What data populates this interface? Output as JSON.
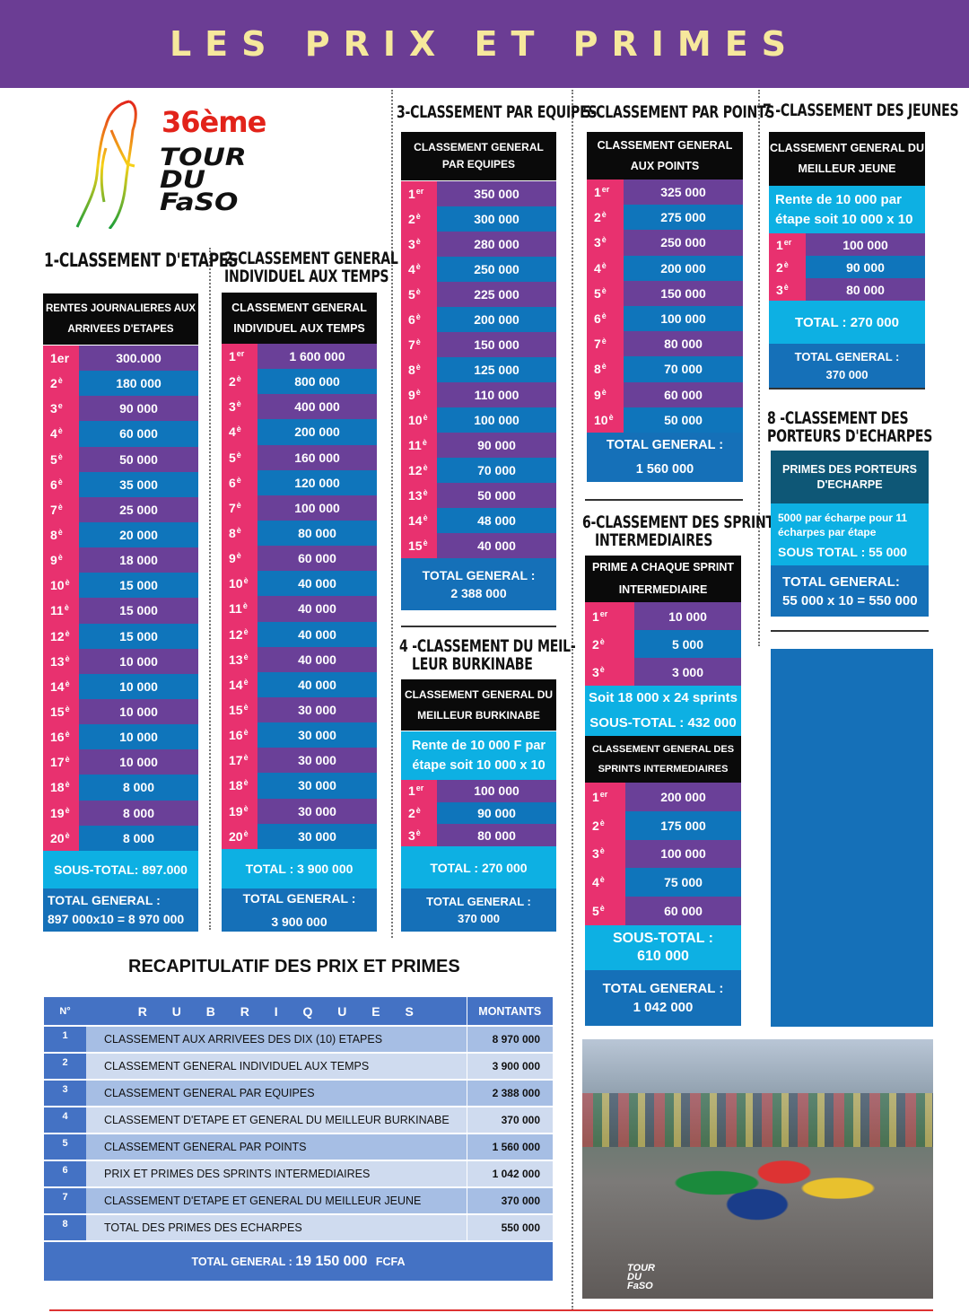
{
  "banner": {
    "title": "LES PRIX ET PRIMES"
  },
  "logo": {
    "edition": "36ème",
    "name": "TOUR\nDU\nFaSO"
  },
  "colors": {
    "banner": "#6b3d94",
    "title": "#f6e89c",
    "rank": "#e8316f",
    "purple": "#6a4098",
    "blue": "#0f75bb",
    "cyan": "#0db0e3",
    "recap": "#4472c4"
  },
  "s1": {
    "title": "1-CLASSEMENT D'ETAPES",
    "header": "RENTES JOURNALIERES AUX\nARRIVEES D'ETAPES",
    "rows": [
      {
        "n": "1er",
        "sup": "",
        "v": "300.000"
      },
      {
        "n": "2",
        "sup": "è",
        "v": "180 000"
      },
      {
        "n": "3",
        "sup": "e",
        "v": "90 000"
      },
      {
        "n": "4",
        "sup": "è",
        "v": "60 000"
      },
      {
        "n": "5",
        "sup": "è",
        "v": "50 000"
      },
      {
        "n": "6",
        "sup": "è",
        "v": "35 000"
      },
      {
        "n": "7",
        "sup": "è",
        "v": "25 000"
      },
      {
        "n": "8",
        "sup": "è",
        "v": "20 000"
      },
      {
        "n": "9",
        "sup": "è",
        "v": "18 000"
      },
      {
        "n": "10",
        "sup": "è",
        "v": "15 000"
      },
      {
        "n": "11",
        "sup": "è",
        "v": "15 000"
      },
      {
        "n": "12",
        "sup": "è",
        "v": "15 000"
      },
      {
        "n": "13",
        "sup": "è",
        "v": "10 000"
      },
      {
        "n": "14",
        "sup": "è",
        "v": "10 000"
      },
      {
        "n": "15",
        "sup": "è",
        "v": "10 000"
      },
      {
        "n": "16",
        "sup": "è",
        "v": "10 000"
      },
      {
        "n": "17",
        "sup": "è",
        "v": "10 000"
      },
      {
        "n": "18",
        "sup": "è",
        "v": "8 000"
      },
      {
        "n": "19",
        "sup": "è",
        "v": "8 000"
      },
      {
        "n": "20",
        "sup": "è",
        "v": "8 000"
      }
    ],
    "subtotal": "SOUS-TOTAL: 897.000",
    "total": "TOTAL GENERAL :\n897 000x10 = 8 970 000"
  },
  "s2": {
    "title": "2-CLASSEMENT GENERAL\nINDIVIDUEL AUX TEMPS",
    "header": "CLASSEMENT GENERAL\nINDIVIDUEL AUX TEMPS",
    "rows": [
      {
        "n": "1",
        "sup": "er",
        "v": "1 600 000"
      },
      {
        "n": "2",
        "sup": "è",
        "v": "800 000"
      },
      {
        "n": "3",
        "sup": "è",
        "v": "400 000"
      },
      {
        "n": "4",
        "sup": "è",
        "v": "200 000"
      },
      {
        "n": "5",
        "sup": "è",
        "v": "160 000"
      },
      {
        "n": "6",
        "sup": "è",
        "v": "120 000"
      },
      {
        "n": "7",
        "sup": "è",
        "v": "100 000"
      },
      {
        "n": "8",
        "sup": "è",
        "v": "80 000"
      },
      {
        "n": "9",
        "sup": "è",
        "v": "60 000"
      },
      {
        "n": "10",
        "sup": "è",
        "v": "40 000"
      },
      {
        "n": "11",
        "sup": "è",
        "v": "40 000"
      },
      {
        "n": "12",
        "sup": "è",
        "v": "40 000"
      },
      {
        "n": "13",
        "sup": "è",
        "v": "40 000"
      },
      {
        "n": "14",
        "sup": "è",
        "v": "40 000"
      },
      {
        "n": "15",
        "sup": "è",
        "v": "30 000"
      },
      {
        "n": "16",
        "sup": "è",
        "v": "30 000"
      },
      {
        "n": "17",
        "sup": "è",
        "v": "30 000"
      },
      {
        "n": "18",
        "sup": "è",
        "v": "30 000"
      },
      {
        "n": "19",
        "sup": "è",
        "v": "30 000"
      },
      {
        "n": "20",
        "sup": "è",
        "v": "30 000"
      }
    ],
    "subtotal": "TOTAL : 3 900 000",
    "total": "TOTAL GENERAL :\n3 900 000"
  },
  "s3": {
    "title": "3-CLASSEMENT PAR EQUIPES",
    "header": "CLASSEMENT GENERAL\nPAR EQUIPES",
    "rows": [
      {
        "n": "1",
        "sup": "er",
        "v": "350 000"
      },
      {
        "n": "2",
        "sup": "è",
        "v": "300 000"
      },
      {
        "n": "3",
        "sup": "è",
        "v": "280 000"
      },
      {
        "n": "4",
        "sup": "è",
        "v": "250 000"
      },
      {
        "n": "5",
        "sup": "è",
        "v": "225 000"
      },
      {
        "n": "6",
        "sup": "è",
        "v": "200 000"
      },
      {
        "n": "7",
        "sup": "è",
        "v": "150 000"
      },
      {
        "n": "8",
        "sup": "è",
        "v": "125 000"
      },
      {
        "n": "9",
        "sup": "è",
        "v": "110 000"
      },
      {
        "n": "10",
        "sup": "è",
        "v": "100 000"
      },
      {
        "n": "11",
        "sup": "è",
        "v": "90 000"
      },
      {
        "n": "12",
        "sup": "è",
        "v": "70 000"
      },
      {
        "n": "13",
        "sup": "è",
        "v": "50 000"
      },
      {
        "n": "14",
        "sup": "è",
        "v": "48 000"
      },
      {
        "n": "15",
        "sup": "è",
        "v": "40 000"
      }
    ],
    "total": "TOTAL GENERAL :\n2 388 000"
  },
  "s4": {
    "title": "4 -CLASSEMENT DU MEIL-\n   LEUR BURKINABE",
    "header": "CLASSEMENT GENERAL DU\nMEILLEUR BURKINABE",
    "rente": "Rente de 10 000 F par\nétape soit 10 000 x 10",
    "rows": [
      {
        "n": "1",
        "sup": "er",
        "v": "100 000"
      },
      {
        "n": "2",
        "sup": "è",
        "v": "90 000"
      },
      {
        "n": "3",
        "sup": "è",
        "v": "80 000"
      }
    ],
    "subtotal": "TOTAL : 270 000",
    "total": "TOTAL GENERAL :\n370 000"
  },
  "s5": {
    "title": "5-CLASSEMENT PAR POINTS",
    "header": "CLASSEMENT GENERAL\nAUX POINTS",
    "rows": [
      {
        "n": "1",
        "sup": "er",
        "v": "325 000"
      },
      {
        "n": "2",
        "sup": "è",
        "v": "275 000"
      },
      {
        "n": "3",
        "sup": "è",
        "v": "250 000"
      },
      {
        "n": "4",
        "sup": "è",
        "v": "200 000"
      },
      {
        "n": "5",
        "sup": "è",
        "v": "150 000"
      },
      {
        "n": "6",
        "sup": "è",
        "v": "100 000"
      },
      {
        "n": "7",
        "sup": "è",
        "v": "80 000"
      },
      {
        "n": "8",
        "sup": "è",
        "v": "70 000"
      },
      {
        "n": "9",
        "sup": "è",
        "v": "60 000"
      },
      {
        "n": "10",
        "sup": "è",
        "v": "50 000"
      }
    ],
    "total": "TOTAL GENERAL :\n1 560 000"
  },
  "s6": {
    "title": "6-CLASSEMENT DES SPRINTS\n   INTERMEDIAIRES",
    "header": "PRIME A CHAQUE SPRINT\nINTERMEDIAIRE",
    "rows": [
      {
        "n": "1",
        "sup": "er",
        "v": "10 000"
      },
      {
        "n": "2",
        "sup": "è",
        "v": "5 000"
      },
      {
        "n": "3",
        "sup": "è",
        "v": "3 000"
      }
    ],
    "soit": "Soit 18 000 x 24 sprints\nSOUS-TOTAL : 432 000",
    "header2": "CLASSEMENT GENERAL DES\nSPRINTS INTERMEDIAIRES",
    "rows2": [
      {
        "n": "1",
        "sup": "er",
        "v": "200 000"
      },
      {
        "n": "2",
        "sup": "è",
        "v": "175 000"
      },
      {
        "n": "3",
        "sup": "è",
        "v": "100 000"
      },
      {
        "n": "4",
        "sup": "è",
        "v": "75 000"
      },
      {
        "n": "5",
        "sup": "è",
        "v": "60 000"
      }
    ],
    "subtotal": "SOUS-TOTAL :\n610 000",
    "total": "TOTAL GENERAL :\n1 042 000"
  },
  "s7": {
    "title": "7 -CLASSEMENT DES JEUNES",
    "header": "CLASSEMENT GENERAL DU\nMEILLEUR JEUNE",
    "rente": "Rente de 10 000 par\nétape soit 10 000 x 10",
    "rows": [
      {
        "n": "1",
        "sup": "er",
        "v": "100 000"
      },
      {
        "n": "2",
        "sup": "è",
        "v": "90 000"
      },
      {
        "n": "3",
        "sup": "è",
        "v": "80 000"
      }
    ],
    "subtotal": "TOTAL : 270 000",
    "total": "TOTAL GENERAL :\n370 000"
  },
  "s8": {
    "title": "8 -CLASSEMENT DES\nPORTEURS D'ECHARPES",
    "header": "PRIMES DES PORTEURS\nD'ECHARPE",
    "desc": "5000 par écharpe pour 11\nécharpes par étape",
    "subtotal": "SOUS TOTAL : 55 000",
    "total": "TOTAL GENERAL:\n55 000 x 10 = 550 000"
  },
  "recap": {
    "title": "RECAPITULATIF DES PRIX ET PRIMES",
    "col_num": "N°",
    "col_rubriques": "R U B R I Q U E S",
    "col_montants": "MONTANTS",
    "rows": [
      {
        "n": "1",
        "label": "CLASSEMENT AUX ARRIVEES DES DIX (10) ETAPES",
        "amount": "8 970 000"
      },
      {
        "n": "2",
        "label": "CLASSEMENT GENERAL INDIVIDUEL AUX TEMPS",
        "amount": "3 900 000"
      },
      {
        "n": "3",
        "label": "CLASSEMENT GENERAL PAR EQUIPES",
        "amount": "2 388 000"
      },
      {
        "n": "4",
        "label": "CLASSEMENT D'ETAPE ET GENERAL DU MEILLEUR BURKINABE",
        "amount": "370 000"
      },
      {
        "n": "5",
        "label": "CLASSEMENT GENERAL PAR POINTS",
        "amount": "1 560 000"
      },
      {
        "n": "6",
        "label": "PRIX ET PRIMES DES SPRINTS INTERMEDIAIRES",
        "amount": "1 042 000"
      },
      {
        "n": "7",
        "label": "CLASSEMENT D'ETAPE ET GENERAL DU MEILLEUR JEUNE",
        "amount": "370 000"
      },
      {
        "n": "8",
        "label": "TOTAL DES PRIMES DES ECHARPES",
        "amount": "550 000"
      }
    ],
    "total_label": "TOTAL GENERAL :",
    "total_value": "19 150 000",
    "total_currency": "FCFA"
  },
  "photo": {
    "watermark": "TOUR\nDU\nFaSO"
  }
}
